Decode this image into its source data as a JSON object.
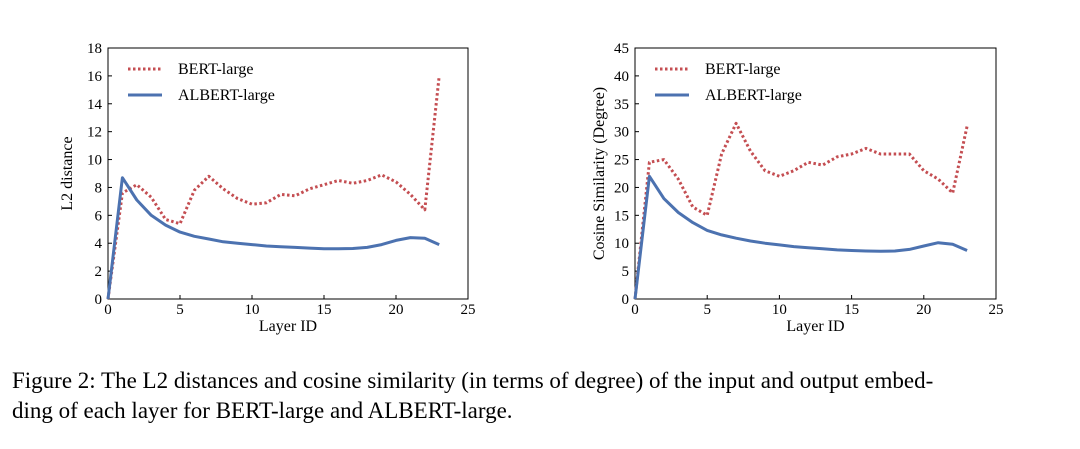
{
  "caption": {
    "line1": "Figure 2: The L2 distances and cosine similarity (in terms of degree) of the input and output embed-",
    "line2": "ding of each layer for BERT-large and ALBERT-large."
  },
  "chart_data": [
    {
      "type": "line",
      "xlabel": "Layer ID",
      "ylabel": "L2 distance",
      "xlim": [
        0,
        25
      ],
      "ylim": [
        0,
        18
      ],
      "xticks": [
        0,
        5,
        10,
        15,
        20,
        25
      ],
      "yticks": [
        0,
        2,
        4,
        6,
        8,
        10,
        12,
        14,
        16,
        18
      ],
      "grid": false,
      "legend": "top-left",
      "series": [
        {
          "name": "BERT-large",
          "color": "#c44e52",
          "style": "dotted",
          "x": [
            0,
            1,
            2,
            3,
            4,
            5,
            6,
            7,
            8,
            9,
            10,
            11,
            12,
            13,
            14,
            15,
            16,
            17,
            18,
            19,
            20,
            21,
            22,
            23
          ],
          "y": [
            0,
            7.6,
            8.2,
            7.3,
            5.7,
            5.4,
            7.8,
            8.8,
            7.9,
            7.2,
            6.8,
            6.9,
            7.5,
            7.4,
            7.9,
            8.2,
            8.5,
            8.3,
            8.5,
            8.9,
            8.4,
            7.5,
            6.4,
            16.0
          ]
        },
        {
          "name": "ALBERT-large",
          "color": "#4c72b0",
          "style": "solid",
          "x": [
            0,
            1,
            2,
            3,
            4,
            5,
            6,
            7,
            8,
            9,
            10,
            11,
            12,
            13,
            14,
            15,
            16,
            17,
            18,
            19,
            20,
            21,
            22,
            23
          ],
          "y": [
            0,
            8.7,
            7.1,
            6.0,
            5.3,
            4.8,
            4.5,
            4.3,
            4.1,
            4.0,
            3.9,
            3.8,
            3.75,
            3.7,
            3.65,
            3.6,
            3.6,
            3.62,
            3.7,
            3.9,
            4.2,
            4.4,
            4.35,
            3.9
          ]
        }
      ]
    },
    {
      "type": "line",
      "xlabel": "Layer ID",
      "ylabel": "Cosine Similarity (Degree)",
      "xlim": [
        0,
        25
      ],
      "ylim": [
        0,
        45
      ],
      "xticks": [
        0,
        5,
        10,
        15,
        20,
        25
      ],
      "yticks": [
        0,
        5,
        10,
        15,
        20,
        25,
        30,
        35,
        40,
        45
      ],
      "grid": false,
      "legend": "top-left",
      "series": [
        {
          "name": "BERT-large",
          "color": "#c44e52",
          "style": "dotted",
          "x": [
            0,
            1,
            2,
            3,
            4,
            5,
            6,
            7,
            8,
            9,
            10,
            11,
            12,
            13,
            14,
            15,
            16,
            17,
            18,
            19,
            20,
            21,
            22,
            23
          ],
          "y": [
            0,
            24.5,
            25.0,
            21.5,
            16.5,
            15.0,
            26.0,
            31.5,
            26.5,
            23.0,
            22.0,
            23.0,
            24.5,
            24.0,
            25.5,
            26.0,
            27.0,
            26.0,
            26.0,
            26.0,
            23.0,
            21.5,
            19.0,
            31.0
          ]
        },
        {
          "name": "ALBERT-large",
          "color": "#4c72b0",
          "style": "solid",
          "x": [
            0,
            1,
            2,
            3,
            4,
            5,
            6,
            7,
            8,
            9,
            10,
            11,
            12,
            13,
            14,
            15,
            16,
            17,
            18,
            19,
            20,
            21,
            22,
            23
          ],
          "y": [
            0,
            22.0,
            18.0,
            15.5,
            13.7,
            12.3,
            11.5,
            10.9,
            10.4,
            10.0,
            9.7,
            9.4,
            9.2,
            9.0,
            8.8,
            8.7,
            8.6,
            8.55,
            8.6,
            8.9,
            9.5,
            10.1,
            9.8,
            8.7
          ]
        }
      ]
    }
  ]
}
